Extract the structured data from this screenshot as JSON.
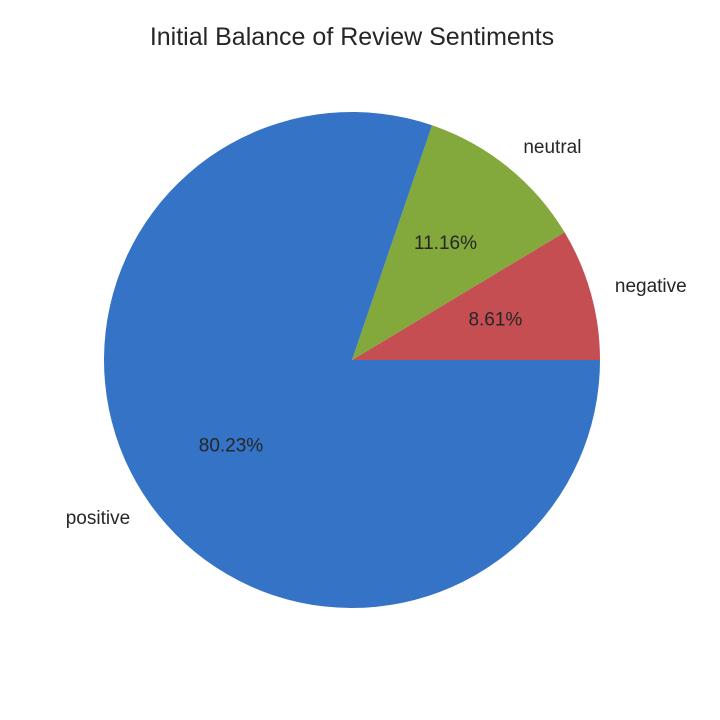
{
  "chart_data": {
    "type": "pie",
    "title": "Initial Balance of Review Sentiments",
    "categories": [
      "negative",
      "neutral",
      "positive"
    ],
    "values": [
      8.61,
      11.16,
      80.23
    ],
    "labels": [
      "8.61%",
      "11.16%",
      "80.23%"
    ],
    "colors": [
      "#c44e52",
      "#83a83b",
      "#3573c6"
    ],
    "start_angle_deg": 0,
    "direction": "clockwise-on-screen"
  }
}
